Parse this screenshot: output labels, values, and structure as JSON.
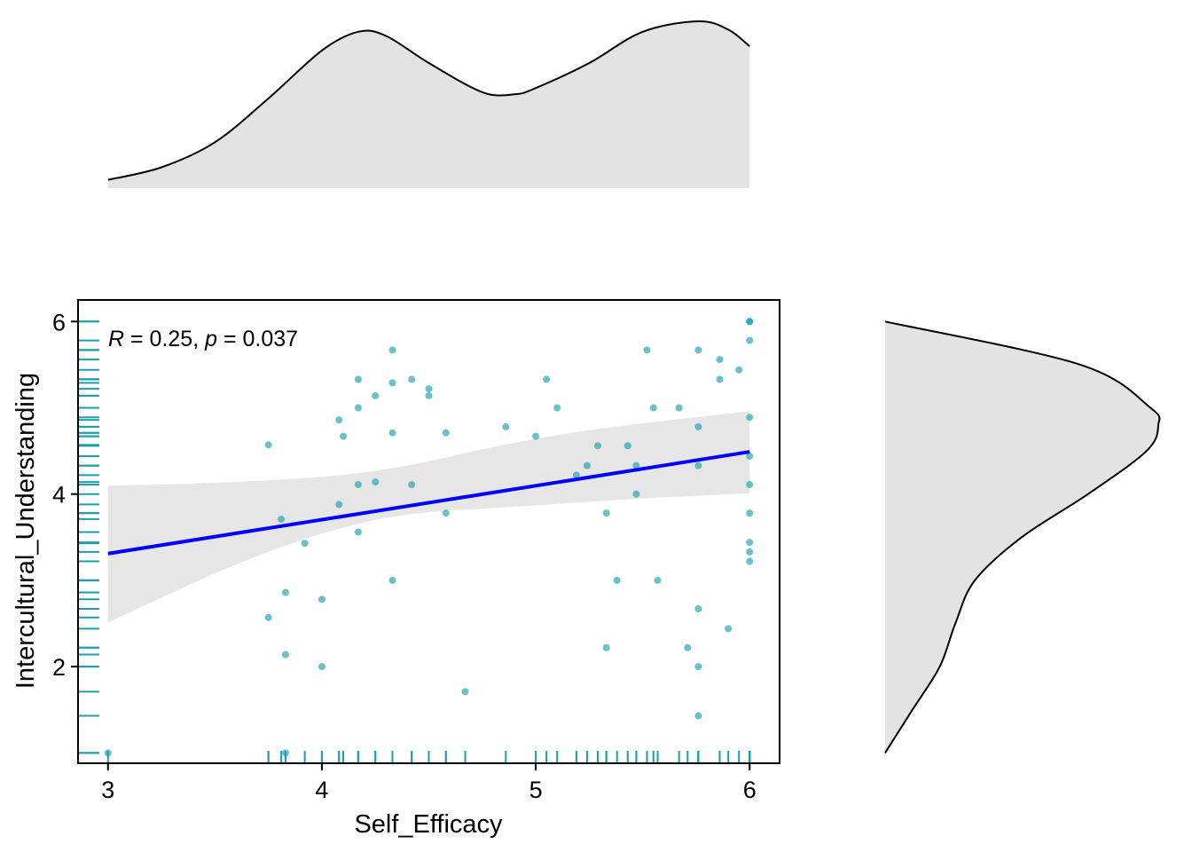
{
  "chart_data": {
    "type": "scatter",
    "xlabel": "Self_Efficacy",
    "ylabel": "Intercultural_Understanding",
    "xlim": [
      2.86,
      6.14
    ],
    "ylim": [
      0.88,
      6.25
    ],
    "x_ticks": [
      "3",
      "4",
      "5",
      "6"
    ],
    "y_ticks": [
      "2",
      "4",
      "6"
    ],
    "annotation": {
      "r_symbol": "R",
      "r_text": " = 0.25, ",
      "p_symbol": "p",
      "p_text": " = 0.037"
    },
    "point_color": "#1aa0ad",
    "line_color": "#0000ff",
    "band_color": "#e6e6e6",
    "density_fill": "#e3e3e3",
    "points": [
      [
        3.0,
        1.0
      ],
      [
        3.75,
        4.57
      ],
      [
        3.75,
        2.57
      ],
      [
        3.83,
        2.86
      ],
      [
        3.83,
        2.14
      ],
      [
        3.83,
        1.0
      ],
      [
        3.81,
        3.71
      ],
      [
        3.92,
        3.43
      ],
      [
        4.0,
        2.78
      ],
      [
        4.0,
        2.0
      ],
      [
        4.08,
        4.86
      ],
      [
        4.08,
        3.88
      ],
      [
        4.1,
        4.67
      ],
      [
        4.17,
        5.33
      ],
      [
        4.17,
        5.0
      ],
      [
        4.17,
        4.11
      ],
      [
        4.17,
        3.56
      ],
      [
        4.25,
        5.14
      ],
      [
        4.25,
        4.14
      ],
      [
        4.33,
        5.67
      ],
      [
        4.33,
        5.29
      ],
      [
        4.33,
        4.71
      ],
      [
        4.33,
        3.0
      ],
      [
        4.42,
        5.33
      ],
      [
        4.42,
        4.11
      ],
      [
        4.5,
        5.22
      ],
      [
        4.5,
        5.14
      ],
      [
        4.58,
        4.71
      ],
      [
        4.58,
        3.78
      ],
      [
        4.67,
        1.71
      ],
      [
        4.86,
        4.78
      ],
      [
        5.0,
        4.67
      ],
      [
        5.05,
        5.33
      ],
      [
        5.1,
        5.0
      ],
      [
        5.19,
        4.22
      ],
      [
        5.24,
        4.33
      ],
      [
        5.29,
        4.56
      ],
      [
        5.33,
        3.78
      ],
      [
        5.33,
        2.22
      ],
      [
        5.38,
        3.0
      ],
      [
        5.43,
        4.56
      ],
      [
        5.47,
        4.33
      ],
      [
        5.47,
        4.0
      ],
      [
        5.52,
        5.67
      ],
      [
        5.55,
        5.0
      ],
      [
        5.57,
        3.0
      ],
      [
        5.67,
        5.0
      ],
      [
        5.71,
        2.22
      ],
      [
        5.76,
        5.67
      ],
      [
        5.76,
        4.78
      ],
      [
        5.76,
        4.33
      ],
      [
        5.76,
        2.67
      ],
      [
        5.76,
        2.0
      ],
      [
        5.76,
        1.43
      ],
      [
        5.86,
        5.56
      ],
      [
        5.86,
        5.33
      ],
      [
        5.9,
        2.44
      ],
      [
        5.95,
        5.44
      ],
      [
        6.0,
        6.0
      ],
      [
        6.0,
        6.0
      ],
      [
        6.0,
        5.78
      ],
      [
        6.0,
        4.89
      ],
      [
        6.0,
        4.44
      ],
      [
        6.0,
        4.11
      ],
      [
        6.0,
        3.78
      ],
      [
        6.0,
        3.44
      ],
      [
        6.0,
        3.33
      ],
      [
        6.0,
        3.22
      ]
    ],
    "regression": {
      "x": [
        3.0,
        3.25,
        3.5,
        3.75,
        4.0,
        4.25,
        4.5,
        4.75,
        5.0,
        5.25,
        5.5,
        5.75,
        6.0
      ],
      "fit": [
        3.31,
        3.41,
        3.51,
        3.61,
        3.7,
        3.8,
        3.9,
        4.0,
        4.1,
        4.19,
        4.29,
        4.39,
        4.49
      ],
      "lower": [
        2.51,
        2.8,
        3.08,
        3.33,
        3.54,
        3.7,
        3.79,
        3.83,
        3.87,
        3.91,
        3.95,
        3.98,
        4.01
      ],
      "upper": [
        4.1,
        4.11,
        4.13,
        4.16,
        4.2,
        4.27,
        4.38,
        4.52,
        4.64,
        4.74,
        4.82,
        4.89,
        4.96
      ]
    },
    "x_density": {
      "x": [
        3.0,
        3.25,
        3.5,
        3.75,
        4.0,
        4.17,
        4.3,
        4.5,
        4.75,
        4.9,
        5.0,
        5.25,
        5.5,
        5.76,
        5.9,
        6.0
      ],
      "density": [
        0.04,
        0.1,
        0.22,
        0.43,
        0.66,
        0.75,
        0.73,
        0.6,
        0.46,
        0.45,
        0.48,
        0.6,
        0.75,
        0.8,
        0.76,
        0.68
      ]
    },
    "y_density": {
      "y": [
        1.0,
        1.5,
        2.0,
        2.5,
        3.0,
        3.5,
        4.0,
        4.5,
        4.8,
        5.0,
        5.5,
        6.0
      ],
      "density": [
        0.0,
        0.07,
        0.14,
        0.18,
        0.23,
        0.35,
        0.52,
        0.67,
        0.7,
        0.68,
        0.5,
        0.0
      ]
    }
  }
}
